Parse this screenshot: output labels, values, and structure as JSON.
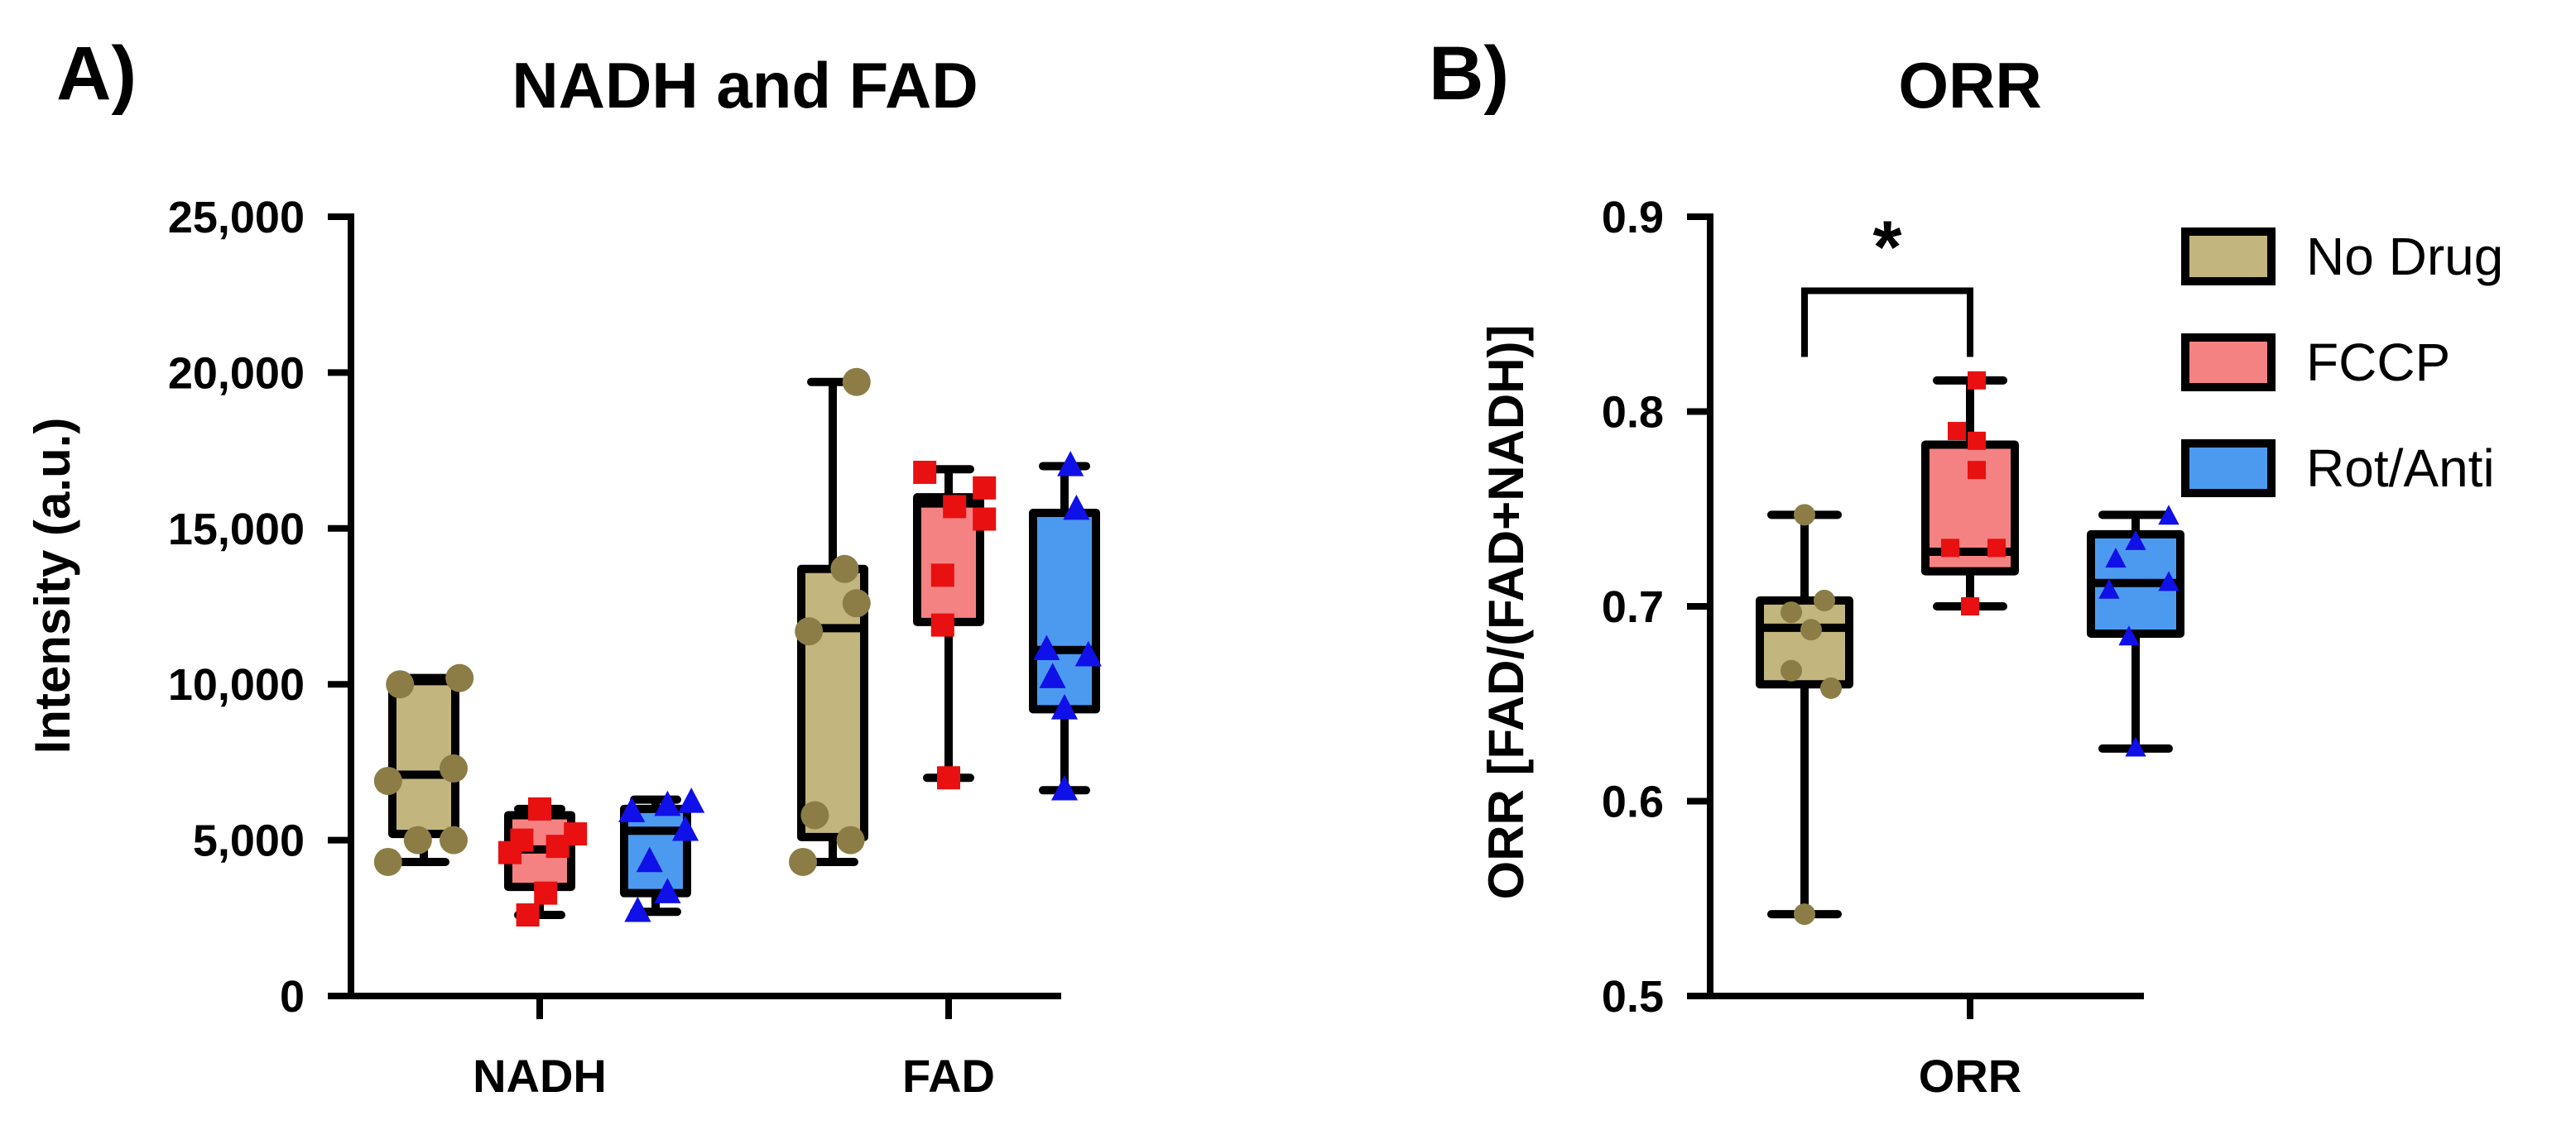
{
  "colors": {
    "No Drug": {
      "fill": "#c2b67e",
      "point": "#8b7d45"
    },
    "FCCP": {
      "fill": "#f58282",
      "point": "#e81010"
    },
    "Rot/Anti": {
      "fill": "#4c9af0",
      "point": "#1010e8"
    },
    "outline": "#000000"
  },
  "chart_data": [
    {
      "type": "box",
      "panel_label": "A)",
      "title": "NADH and FAD",
      "xlabel": "",
      "ylabel": "Intensity (a.u.)",
      "ylim": [
        0,
        25000
      ],
      "yticks": [
        0,
        5000,
        10000,
        15000,
        20000,
        25000
      ],
      "ytick_labels": [
        "0",
        "5,000",
        "10,000",
        "15,000",
        "20,000",
        "25,000"
      ],
      "categories": [
        "NADH",
        "FAD"
      ],
      "groups": [
        {
          "category": "NADH",
          "boxes": [
            {
              "series": "No Drug",
              "marker": "circle",
              "min": 4300,
              "q1": 5200,
              "median": 7100,
              "q3": 10100,
              "max": 10200,
              "points": [
                [
                  -0.6,
                  4300
                ],
                [
                  -0.1,
                  5000
                ],
                [
                  0.5,
                  5000
                ],
                [
                  -0.6,
                  6900
                ],
                [
                  0.5,
                  7300
                ],
                [
                  -0.4,
                  10000
                ],
                [
                  0.6,
                  10200
                ]
              ]
            },
            {
              "series": "FCCP",
              "marker": "square",
              "min": 2600,
              "q1": 3500,
              "median": 4700,
              "q3": 5800,
              "max": 6000,
              "points": [
                [
                  -0.2,
                  2600
                ],
                [
                  0.1,
                  3300
                ],
                [
                  -0.5,
                  4600
                ],
                [
                  0.3,
                  4800
                ],
                [
                  -0.3,
                  5000
                ],
                [
                  0.6,
                  5200
                ],
                [
                  0,
                  6000
                ]
              ]
            },
            {
              "series": "Rot/Anti",
              "marker": "triangle",
              "min": 2700,
              "q1": 3300,
              "median": 5300,
              "q3": 6000,
              "max": 6300,
              "points": [
                [
                  -0.3,
                  2700
                ],
                [
                  0.2,
                  3300
                ],
                [
                  -0.1,
                  4300
                ],
                [
                  0.5,
                  5300
                ],
                [
                  -0.4,
                  5900
                ],
                [
                  0.2,
                  6100
                ],
                [
                  0.6,
                  6200
                ]
              ]
            }
          ]
        },
        {
          "category": "FAD",
          "boxes": [
            {
              "series": "No Drug",
              "marker": "circle",
              "min": 4300,
              "q1": 5100,
              "median": 11800,
              "q3": 13700,
              "max": 19700,
              "points": [
                [
                  -0.5,
                  4300
                ],
                [
                  0.3,
                  5000
                ],
                [
                  -0.3,
                  5800
                ],
                [
                  -0.4,
                  11700
                ],
                [
                  0.4,
                  12600
                ],
                [
                  0.2,
                  13700
                ],
                [
                  0.4,
                  19700
                ]
              ]
            },
            {
              "series": "FCCP",
              "marker": "square",
              "min": 7000,
              "q1": 12000,
              "median": 15800,
              "q3": 16000,
              "max": 16900,
              "points": [
                [
                  0,
                  7000
                ],
                [
                  -0.1,
                  11900
                ],
                [
                  -0.1,
                  13500
                ],
                [
                  0.6,
                  15300
                ],
                [
                  0.1,
                  15700
                ],
                [
                  0.6,
                  16300
                ],
                [
                  -0.4,
                  16800
                ]
              ]
            },
            {
              "series": "Rot/Anti",
              "marker": "triangle",
              "min": 6600,
              "q1": 9200,
              "median": 11100,
              "q3": 15500,
              "max": 17000,
              "points": [
                [
                  0,
                  6600
                ],
                [
                  0,
                  9200
                ],
                [
                  -0.2,
                  10200
                ],
                [
                  0.4,
                  10900
                ],
                [
                  -0.3,
                  11100
                ],
                [
                  0.2,
                  15600
                ],
                [
                  0.1,
                  17000
                ]
              ]
            }
          ]
        }
      ]
    },
    {
      "type": "box",
      "panel_label": "B)",
      "title": "ORR",
      "xlabel": "",
      "ylabel": "ORR [FAD/(FAD+NADH)]",
      "ylim": [
        0.5,
        0.9
      ],
      "yticks": [
        0.5,
        0.6,
        0.7,
        0.8,
        0.9
      ],
      "ytick_labels": [
        "0.5",
        "0.6",
        "0.7",
        "0.8",
        "0.9"
      ],
      "categories": [
        "ORR"
      ],
      "groups": [
        {
          "category": "ORR",
          "boxes": [
            {
              "series": "No Drug",
              "marker": "circle",
              "min": 0.542,
              "q1": 0.66,
              "median": 0.689,
              "q3": 0.703,
              "max": 0.747,
              "points": [
                [
                  0,
                  0.542
                ],
                [
                  0.4,
                  0.658
                ],
                [
                  -0.2,
                  0.667
                ],
                [
                  0.1,
                  0.688
                ],
                [
                  -0.2,
                  0.697
                ],
                [
                  0.3,
                  0.703
                ],
                [
                  0,
                  0.747
                ]
              ]
            },
            {
              "series": "FCCP",
              "marker": "square",
              "min": 0.7,
              "q1": 0.718,
              "median": 0.728,
              "q3": 0.783,
              "max": 0.816,
              "points": [
                [
                  0,
                  0.7
                ],
                [
                  -0.3,
                  0.73
                ],
                [
                  0.4,
                  0.73
                ],
                [
                  0.1,
                  0.77
                ],
                [
                  0.1,
                  0.785
                ],
                [
                  -0.2,
                  0.79
                ],
                [
                  0.1,
                  0.816
                ]
              ]
            },
            {
              "series": "Rot/Anti",
              "marker": "triangle",
              "min": 0.627,
              "q1": 0.686,
              "median": 0.712,
              "q3": 0.737,
              "max": 0.747,
              "points": [
                [
                  0,
                  0.627
                ],
                [
                  -0.1,
                  0.684
                ],
                [
                  -0.4,
                  0.708
                ],
                [
                  0.5,
                  0.712
                ],
                [
                  -0.3,
                  0.724
                ],
                [
                  0,
                  0.733
                ],
                [
                  0.5,
                  0.746
                ]
              ]
            }
          ]
        }
      ],
      "significance": {
        "label": "*",
        "between": [
          "No Drug",
          "FCCP"
        ],
        "y": 0.862
      }
    }
  ],
  "legend": {
    "position": "right",
    "entries": [
      "No Drug",
      "FCCP",
      "Rot/Anti"
    ]
  }
}
